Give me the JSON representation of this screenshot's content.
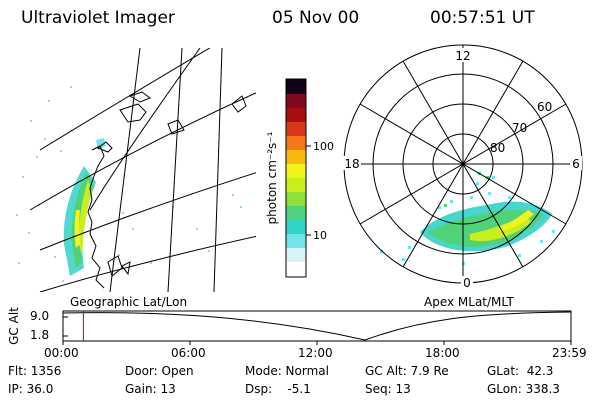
{
  "header": {
    "instrument": "Ultraviolet Imager",
    "date": "05 Nov 00",
    "time": "00:57:51 UT"
  },
  "colorbar": {
    "label": "photon cm⁻²s⁻¹",
    "ticks": [
      "100",
      "10"
    ],
    "colors": [
      "#ffffff",
      "#d8f3f6",
      "#6fe6ea",
      "#33d2c8",
      "#4fd27a",
      "#8ee03a",
      "#c8ee1e",
      "#f2f21c",
      "#f7b812",
      "#f1791a",
      "#d93818",
      "#a61010",
      "#7d0a1e",
      "#4a0a3c",
      "#100018"
    ]
  },
  "left_panel": {
    "caption": "Geographic Lat/Lon"
  },
  "polar_plot": {
    "caption": "Apex MLat/MLT",
    "mlt_labels": [
      "12",
      "18",
      "6",
      "0"
    ],
    "lat_labels": [
      "60",
      "70",
      "80"
    ]
  },
  "timeline": {
    "axis_label": "GC Alt",
    "y_ticks": [
      "9.0",
      "1.8"
    ],
    "x_ticks": [
      "00:00",
      "06:00",
      "12:00",
      "18:00",
      "23:59"
    ],
    "current_time_hours": 0.965,
    "alt_range_re": [
      1.8,
      9.0
    ],
    "current_alt_re": 7.9
  },
  "footer": {
    "flt": "Flt: 1356",
    "ip": "IP: 36.0",
    "door": "Door: Open",
    "gain": "Gain: 13",
    "mode": "Mode: Normal",
    "dsp": "Dsp:    -5.1",
    "gcalt": "GC Alt: 7.9 Re",
    "seq": "Seq: 13",
    "glat": "GLat:  42.3",
    "glon": "GLon: 338.3"
  }
}
